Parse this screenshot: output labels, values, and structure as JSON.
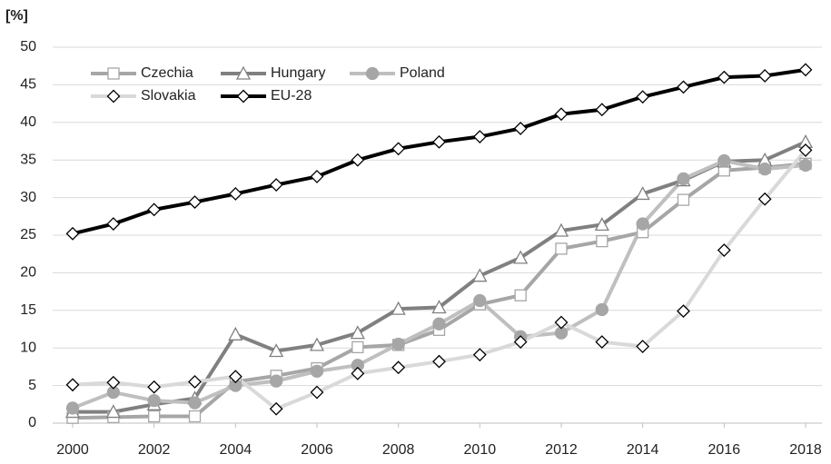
{
  "chart_data": {
    "type": "line",
    "y_label": "[%]",
    "x": [
      2000,
      2001,
      2002,
      2003,
      2004,
      2005,
      2006,
      2007,
      2008,
      2009,
      2010,
      2011,
      2012,
      2013,
      2014,
      2015,
      2016,
      2017,
      2018
    ],
    "xlim": [
      2000,
      2018
    ],
    "xticks": [
      2000,
      2002,
      2004,
      2006,
      2008,
      2010,
      2012,
      2014,
      2016,
      2018
    ],
    "ylim": [
      0,
      50
    ],
    "yticks": [
      0,
      5,
      10,
      15,
      20,
      25,
      30,
      35,
      40,
      45,
      50
    ],
    "grid": true,
    "legend": "top-left",
    "series": [
      {
        "name": "Czechia",
        "color": "#a6a6a6",
        "marker": "square",
        "values": [
          0.7,
          0.8,
          0.9,
          0.9,
          5.5,
          6.3,
          7.3,
          10.1,
          10.4,
          12.4,
          15.8,
          17.0,
          23.2,
          24.2,
          25.4,
          29.7,
          33.6,
          34.0,
          34.5
        ]
      },
      {
        "name": "Hungary",
        "color": "#808080",
        "marker": "triangle",
        "values": [
          1.5,
          1.5,
          2.5,
          3.3,
          11.8,
          9.6,
          10.4,
          12.0,
          15.2,
          15.4,
          19.6,
          22.0,
          25.6,
          26.4,
          30.5,
          32.3,
          34.8,
          35.0,
          37.4
        ]
      },
      {
        "name": "Poland",
        "color": "#bfbfbf",
        "marker": "circle",
        "values": [
          2.0,
          4.1,
          3.0,
          2.7,
          5.0,
          5.6,
          6.9,
          7.7,
          10.5,
          13.2,
          16.3,
          11.5,
          12.0,
          15.1,
          26.5,
          32.5,
          34.9,
          33.8,
          34.3
        ]
      },
      {
        "name": "Slovakia",
        "color": "#d9d9d9",
        "marker": "diamond",
        "values": [
          5.1,
          5.4,
          4.8,
          5.5,
          6.2,
          1.9,
          4.1,
          6.6,
          7.4,
          8.2,
          9.1,
          10.8,
          13.4,
          10.8,
          10.2,
          14.9,
          23.0,
          29.8,
          36.3
        ]
      },
      {
        "name": "EU-28",
        "color": "#000000",
        "marker": "diamond",
        "values": [
          25.2,
          26.5,
          28.4,
          29.4,
          30.5,
          31.7,
          32.8,
          35.0,
          36.5,
          37.4,
          38.1,
          39.2,
          41.1,
          41.7,
          43.4,
          44.7,
          46.0,
          46.2,
          47.0
        ]
      }
    ]
  }
}
